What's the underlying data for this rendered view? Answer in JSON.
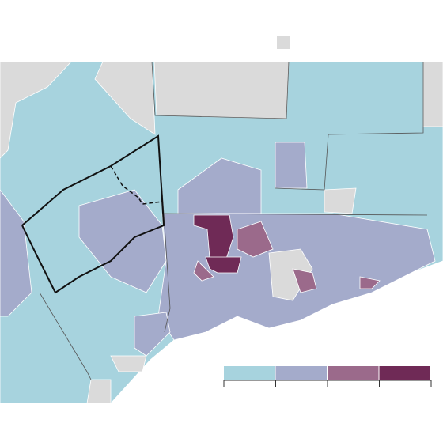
{
  "legend": {
    "colors": [
      "#a7d3de",
      "#a4abcb",
      "#9b6a8b",
      "#6f2a56"
    ],
    "no_data_color": "#dadada"
  }
}
